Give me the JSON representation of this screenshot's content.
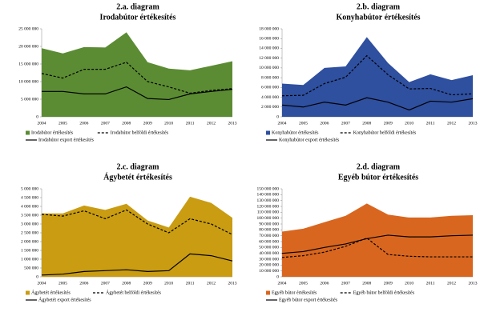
{
  "chart_data": [
    {
      "type": "area_lines",
      "title": "2.a. diagram",
      "subtitle": "Irodabútor értékesítés",
      "categories": [
        "2004",
        "2005",
        "2006",
        "2007",
        "2008",
        "2009",
        "2010",
        "2011",
        "2012",
        "2013"
      ],
      "series": [
        {
          "name": "Irodabútor értékesítés",
          "style": "area",
          "color": "#5b8c33",
          "values": [
            19500000,
            18000000,
            19800000,
            19700000,
            24000000,
            15500000,
            13700000,
            13200000,
            14500000,
            15800000
          ]
        },
        {
          "name": "Irodabútor belföldi értékesítés",
          "style": "dashed",
          "color": "#000000",
          "values": [
            12300000,
            11000000,
            13500000,
            13500000,
            15500000,
            10000000,
            8500000,
            6700000,
            7500000,
            8000000
          ]
        },
        {
          "name": "Irodabútor export értékesítés",
          "style": "solid",
          "color": "#000000",
          "values": [
            7200000,
            7200000,
            6500000,
            6500000,
            8500000,
            5200000,
            4900000,
            6500000,
            7200000,
            7800000
          ]
        }
      ],
      "ylim": [
        0,
        25000000
      ],
      "yticks": [
        {
          "value": 0,
          "label": "0"
        },
        {
          "value": 5000000,
          "label": "5 000 000"
        },
        {
          "value": 10000000,
          "label": "10 000 000"
        },
        {
          "value": 15000000,
          "label": "15 000 000"
        },
        {
          "value": 20000000,
          "label": "20 000 000"
        },
        {
          "value": 25000000,
          "label": "25 000 000"
        }
      ]
    },
    {
      "type": "area_lines",
      "title": "2.b. diagram",
      "subtitle": "Konyhabútor értékesítés",
      "categories": [
        "2004",
        "2005",
        "2006",
        "2007",
        "2008",
        "2009",
        "2010",
        "2011",
        "2012",
        "2013"
      ],
      "series": [
        {
          "name": "Konyhabútor értékesítés",
          "style": "area",
          "color": "#2f4f9f",
          "values": [
            6800000,
            6500000,
            10000000,
            10300000,
            16300000,
            11000000,
            7100000,
            8700000,
            7500000,
            8500000
          ]
        },
        {
          "name": "Konyhabútor belföldi értékesítés",
          "style": "dashed",
          "color": "#000000",
          "values": [
            4300000,
            4400000,
            6800000,
            8100000,
            12500000,
            8600000,
            5700000,
            5800000,
            4500000,
            4700000
          ]
        },
        {
          "name": "Konyhabútor export értékesítés",
          "style": "solid",
          "color": "#000000",
          "values": [
            2400000,
            2000000,
            3000000,
            2400000,
            3900000,
            3000000,
            1400000,
            3200000,
            3000000,
            3700000
          ]
        }
      ],
      "ylim": [
        0,
        18000000
      ],
      "yticks": [
        {
          "value": 0,
          "label": "0"
        },
        {
          "value": 2000000,
          "label": "2 000 000"
        },
        {
          "value": 4000000,
          "label": "4 000 000"
        },
        {
          "value": 6000000,
          "label": "6 000 000"
        },
        {
          "value": 8000000,
          "label": "8 000 000"
        },
        {
          "value": 10000000,
          "label": "10 000 000"
        },
        {
          "value": 12000000,
          "label": "12 000 000"
        },
        {
          "value": 14000000,
          "label": "14 000 000"
        },
        {
          "value": 16000000,
          "label": "16 000 000"
        },
        {
          "value": 18000000,
          "label": "18 000 000"
        }
      ]
    },
    {
      "type": "area_lines",
      "title": "2.c. diagram",
      "subtitle": "Ágybetét értékesítés",
      "categories": [
        "2004",
        "2005",
        "2006",
        "2007",
        "2008",
        "2009",
        "2010",
        "2011",
        "2012",
        "2013"
      ],
      "series": [
        {
          "name": "Ágybetét értékesítés",
          "style": "area",
          "color": "#c99c12",
          "values": [
            3600000,
            3600000,
            4050000,
            3800000,
            4150000,
            3200000,
            2800000,
            4550000,
            4200000,
            3350000
          ]
        },
        {
          "name": "Ágybetét belföldi értékesítés",
          "style": "dashed",
          "color": "#000000",
          "values": [
            3550000,
            3450000,
            3750000,
            3300000,
            3800000,
            3000000,
            2500000,
            3300000,
            3000000,
            2400000
          ]
        },
        {
          "name": "Ágybetét export értékesítés",
          "style": "solid",
          "color": "#000000",
          "values": [
            100000,
            150000,
            300000,
            350000,
            400000,
            300000,
            350000,
            1300000,
            1200000,
            900000
          ]
        }
      ],
      "ylim": [
        0,
        5000000
      ],
      "yticks": [
        {
          "value": 0,
          "label": "0"
        },
        {
          "value": 500000,
          "label": "500 000"
        },
        {
          "value": 1000000,
          "label": "1 000 000"
        },
        {
          "value": 1500000,
          "label": "1 500 000"
        },
        {
          "value": 2000000,
          "label": "2 000 000"
        },
        {
          "value": 2500000,
          "label": "2 500 000"
        },
        {
          "value": 3000000,
          "label": "3 000 000"
        },
        {
          "value": 3500000,
          "label": "3 500 000"
        },
        {
          "value": 4000000,
          "label": "4 000 000"
        },
        {
          "value": 4500000,
          "label": "4 500 000"
        },
        {
          "value": 5000000,
          "label": "5 000 000"
        }
      ]
    },
    {
      "type": "area_lines",
      "title": "2.d. diagram",
      "subtitle": "Egyéb bútor értékesítés",
      "categories": [
        "2004",
        "2005",
        "2006",
        "2007",
        "2008",
        "2009",
        "2010",
        "2011",
        "2012",
        "2013"
      ],
      "series": [
        {
          "name": "Egyéb bútor értékesítés",
          "style": "area",
          "color": "#d9661f",
          "values": [
            77000000,
            82000000,
            93000000,
            104000000,
            125000000,
            106000000,
            101000000,
            101000000,
            104000000,
            105000000
          ]
        },
        {
          "name": "Egyéb bútor belföldi értékesítés",
          "style": "dashed",
          "color": "#000000",
          "values": [
            33000000,
            36000000,
            42000000,
            52000000,
            66000000,
            38000000,
            35000000,
            34000000,
            34000000,
            34000000
          ]
        },
        {
          "name": "Egyéb bútor export értékesítés",
          "style": "solid",
          "color": "#000000",
          "values": [
            40000000,
            43000000,
            50000000,
            56000000,
            65000000,
            71000000,
            68000000,
            68000000,
            70000000,
            71000000
          ]
        }
      ],
      "ylim": [
        0,
        150000000
      ],
      "yticks": [
        {
          "value": 0,
          "label": "0"
        },
        {
          "value": 10000000,
          "label": "10 000 000"
        },
        {
          "value": 20000000,
          "label": "20 000 000"
        },
        {
          "value": 30000000,
          "label": "30 000 000"
        },
        {
          "value": 40000000,
          "label": "40 000 000"
        },
        {
          "value": 50000000,
          "label": "50 000 000"
        },
        {
          "value": 60000000,
          "label": "60 000 000"
        },
        {
          "value": 70000000,
          "label": "70 000 000"
        },
        {
          "value": 80000000,
          "label": "80 000 000"
        },
        {
          "value": 90000000,
          "label": "90 000 000"
        },
        {
          "value": 100000000,
          "label": "100 000 000"
        },
        {
          "value": 110000000,
          "label": "110 000 000"
        },
        {
          "value": 120000000,
          "label": "120 000 000"
        },
        {
          "value": 130000000,
          "label": "130 000 000"
        },
        {
          "value": 140000000,
          "label": "140 000 000"
        },
        {
          "value": 150000000,
          "label": "150 000 000"
        }
      ]
    }
  ]
}
